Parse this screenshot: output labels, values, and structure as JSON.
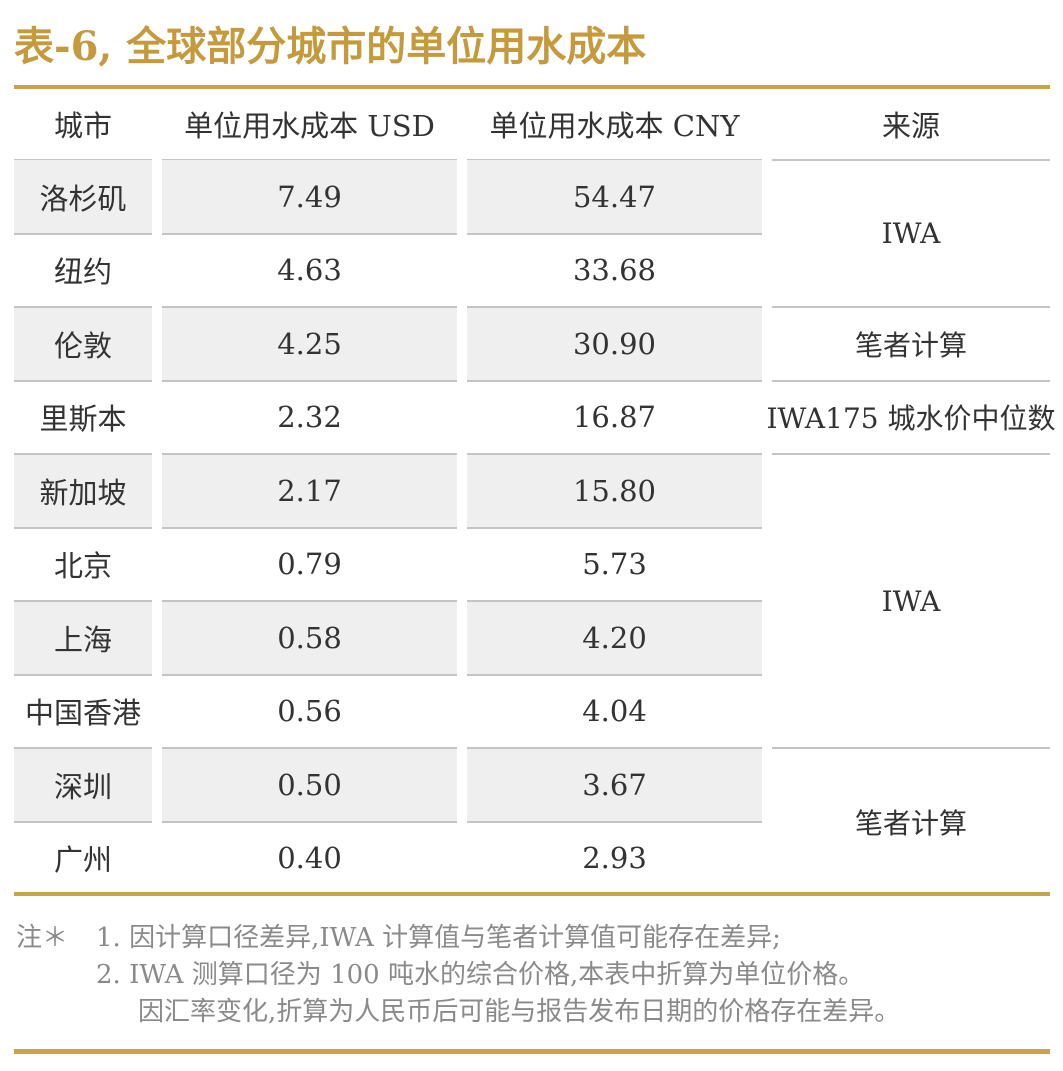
{
  "title": "表-6, 全球部分城市的单位用水成本",
  "table": {
    "header": [
      "城市",
      "单位用水成本 USD",
      "单位用水成本 CNY",
      "来源"
    ],
    "rows": [
      [
        "洛杉矶",
        "7.49",
        "54.47",
        "IWA"
      ],
      [
        "纽约",
        "4.63",
        "33.68",
        null
      ],
      [
        "伦敦",
        "4.25",
        "30.90",
        "笔者计算"
      ],
      [
        "里斯本",
        "2.32",
        "16.87",
        "IWA175 城水价中位数"
      ],
      [
        "新加坡",
        "2.17",
        "15.80",
        "IWA"
      ],
      [
        "北京",
        "0.79",
        "5.73",
        null
      ],
      [
        "上海",
        "0.58",
        "4.20",
        null
      ],
      [
        "中国香港",
        "0.56",
        "4.04",
        null
      ],
      [
        "深圳",
        "0.50",
        "3.67",
        "笔者计算"
      ],
      [
        "广州",
        "0.40",
        "2.93",
        null
      ]
    ]
  },
  "notes": {
    "label": "注＊",
    "lines": [
      "1. 因计算口径差异,IWA 计算值与笔者计算值可能存在差异;",
      "2. IWA 测算口径为 100 吨水的综合价格,本表中折算为单位价格。",
      "因汇率变化,折算为人民币后可能与报告发布日期的价格存在差异。"
    ]
  }
}
